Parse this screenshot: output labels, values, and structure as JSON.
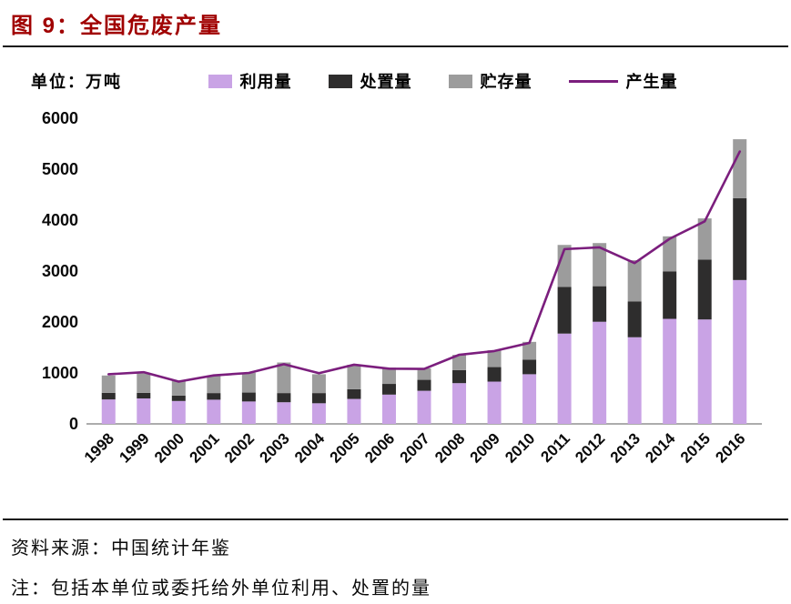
{
  "header": {
    "title": "图 9：全国危废产量"
  },
  "chart_data": {
    "type": "bar+line",
    "title": "全国危废产量",
    "unit_label": "单位：万吨",
    "xlabel": "",
    "ylabel": "万吨",
    "ylim": [
      0,
      6000
    ],
    "yticks": [
      0,
      1000,
      2000,
      3000,
      4000,
      5000,
      6000
    ],
    "grid": false,
    "legend_position": "top",
    "categories": [
      "1998",
      "1999",
      "2000",
      "2001",
      "2002",
      "2003",
      "2004",
      "2005",
      "2006",
      "2007",
      "2008",
      "2009",
      "2010",
      "2011",
      "2012",
      "2013",
      "2014",
      "2015",
      "2016"
    ],
    "series": [
      {
        "name": "利用量",
        "type": "bar",
        "color": "#C9A3E5",
        "values": [
          480,
          500,
          450,
          475,
          440,
          425,
          405,
          490,
          575,
          650,
          800,
          830,
          975,
          1773,
          2005,
          1701,
          2062,
          2050,
          2824
        ]
      },
      {
        "name": "处置量",
        "type": "bar",
        "color": "#2E2D2D",
        "values": [
          130,
          110,
          105,
          130,
          175,
          180,
          200,
          190,
          210,
          215,
          255,
          285,
          285,
          916,
          698,
          701,
          929,
          1174,
          1606
        ]
      },
      {
        "name": "贮存量",
        "type": "bar",
        "color": "#9C9C9C",
        "values": [
          340,
          380,
          290,
          345,
          390,
          600,
          370,
          480,
          320,
          225,
          300,
          330,
          350,
          824,
          847,
          811,
          691,
          810,
          1158
        ]
      },
      {
        "name": "产生量",
        "type": "line",
        "color": "#7B1E7D",
        "values": [
          974,
          1015,
          830,
          952,
          1000,
          1171,
          995,
          1162,
          1084,
          1079,
          1357,
          1430,
          1589,
          3431,
          3465,
          3157,
          3634,
          3976,
          5347
        ]
      }
    ]
  },
  "footer": {
    "source": "资料来源：中国统计年鉴",
    "note": "注：包括本单位或委托给外单位利用、处置的量"
  }
}
